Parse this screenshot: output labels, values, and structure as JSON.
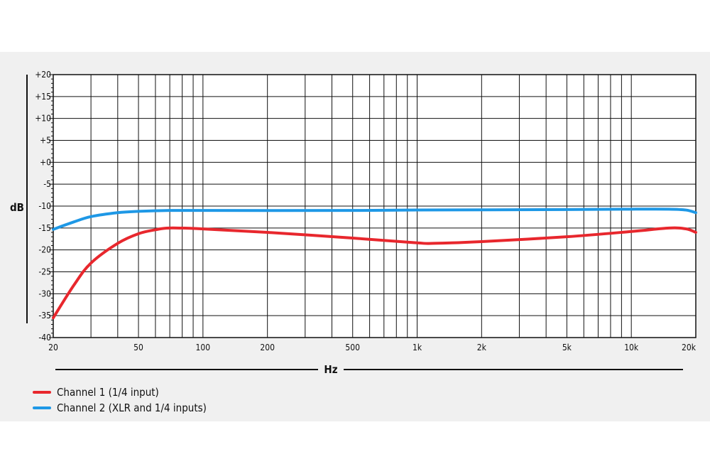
{
  "chart_data": {
    "type": "line",
    "xlabel": "Hz",
    "ylabel": "dB",
    "xscale": "log",
    "xlim": [
      20,
      20000
    ],
    "ylim": [
      -40,
      20
    ],
    "x_tick_values": [
      20,
      50,
      100,
      200,
      500,
      1000,
      2000,
      5000,
      10000,
      20000
    ],
    "x_tick_labels": [
      "20",
      "50",
      "100",
      "200",
      "500",
      "1k",
      "2k",
      "5k",
      "10k",
      "20k"
    ],
    "y_ticks": [
      {
        "value": 20,
        "label": "+20"
      },
      {
        "value": 15,
        "label": "+15"
      },
      {
        "value": 10,
        "label": "+10"
      },
      {
        "value": 5,
        "label": "+5"
      },
      {
        "value": 0,
        "label": "+0"
      },
      {
        "value": -5,
        "label": "-5"
      },
      {
        "value": -10,
        "label": "-10"
      },
      {
        "value": -15,
        "label": "-15"
      },
      {
        "value": -20,
        "label": "-20"
      },
      {
        "value": -25,
        "label": "-25"
      },
      {
        "value": -30,
        "label": "-30"
      },
      {
        "value": -35,
        "label": "-35"
      },
      {
        "value": -40,
        "label": "-40"
      }
    ],
    "grid": true,
    "legend_position": "bottom-left",
    "series": [
      {
        "name": "Channel 1 (1/4 input)",
        "color": "#e8272d",
        "points": [
          [
            20,
            -35.5
          ],
          [
            25,
            -28
          ],
          [
            30,
            -23
          ],
          [
            40,
            -18.5
          ],
          [
            50,
            -16.3
          ],
          [
            60,
            -15.4
          ],
          [
            70,
            -15
          ],
          [
            100,
            -15.2
          ],
          [
            200,
            -16
          ],
          [
            500,
            -17.3
          ],
          [
            1000,
            -18.4
          ],
          [
            1200,
            -18.5
          ],
          [
            2000,
            -18.1
          ],
          [
            5000,
            -17
          ],
          [
            10000,
            -15.8
          ],
          [
            15000,
            -15
          ],
          [
            18000,
            -15.2
          ],
          [
            20000,
            -16
          ]
        ]
      },
      {
        "name": "Channel 2 (XLR and 1/4 inputs)",
        "color": "#1e98e6",
        "points": [
          [
            20,
            -15.3
          ],
          [
            25,
            -13.6
          ],
          [
            30,
            -12.4
          ],
          [
            40,
            -11.5
          ],
          [
            50,
            -11.2
          ],
          [
            70,
            -11
          ],
          [
            100,
            -11
          ],
          [
            500,
            -11
          ],
          [
            1000,
            -10.9
          ],
          [
            5000,
            -10.8
          ],
          [
            10000,
            -10.7
          ],
          [
            15000,
            -10.7
          ],
          [
            18000,
            -10.9
          ],
          [
            20000,
            -11.5
          ]
        ]
      }
    ]
  }
}
